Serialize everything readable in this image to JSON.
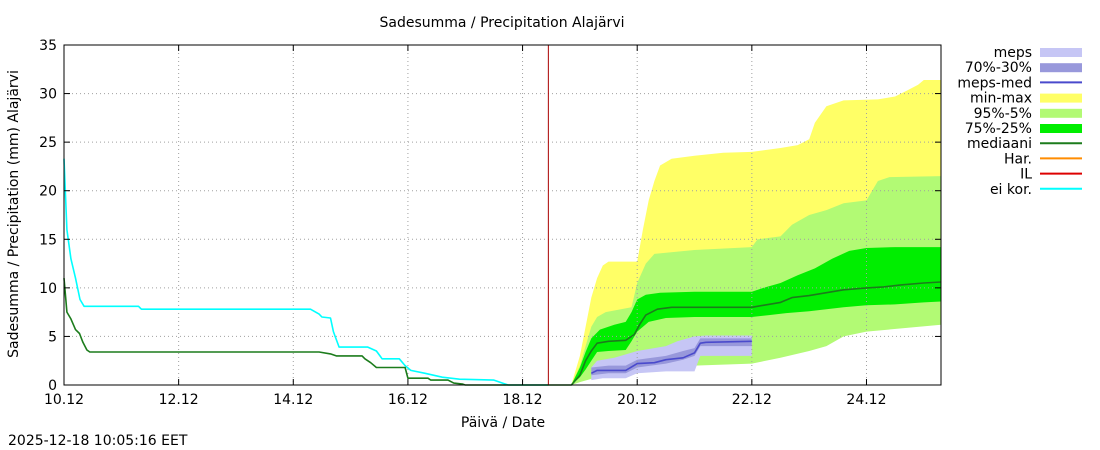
{
  "chart_data": {
    "type": "area",
    "title": "Sadesumma / Precipitation  Alajärvi",
    "xlabel": "Päivä / Date",
    "ylabel": "Sadesumma / Precipitation (mm)  Alajärvi",
    "timestamp": "2025-12-18 10:05:16 EET",
    "x_unit": "days since 10.12.2025 00:00",
    "xlim": [
      0,
      15.3
    ],
    "ylim": [
      0,
      35
    ],
    "x_ticks": [
      {
        "x": 0,
        "label": "10.12"
      },
      {
        "x": 2,
        "label": "12.12"
      },
      {
        "x": 4,
        "label": "14.12"
      },
      {
        "x": 6,
        "label": "16.12"
      },
      {
        "x": 8,
        "label": "18.12"
      },
      {
        "x": 10,
        "label": "20.12"
      },
      {
        "x": 12,
        "label": "22.12"
      },
      {
        "x": 14,
        "label": "24.12"
      }
    ],
    "y_ticks": [
      0,
      5,
      10,
      15,
      20,
      25,
      30,
      35
    ],
    "grid": true,
    "legend_position": "right",
    "legend": [
      {
        "label": "meps",
        "color": "#c6c6f5",
        "style": "box"
      },
      {
        "label": "70%-30%",
        "color": "#9898db",
        "style": "box"
      },
      {
        "label": "meps-med",
        "color": "#4a4acc",
        "style": "line"
      },
      {
        "label": "min-max",
        "color": "#ffff66",
        "style": "box"
      },
      {
        "label": "95%-5%",
        "color": "#b2fa74",
        "style": "box"
      },
      {
        "label": "75%-25%",
        "color": "#00ee00",
        "style": "box"
      },
      {
        "label": "mediaani",
        "color": "#1c7c1c",
        "style": "line"
      },
      {
        "label": "Har.",
        "color": "#ff8c00",
        "style": "line"
      },
      {
        "label": "IL",
        "color": "#dd0000",
        "style": "line"
      },
      {
        "label": "ei kor.",
        "color": "#00ffff",
        "style": "line"
      }
    ],
    "forecast_start_x": 8.45,
    "series": [
      {
        "name": "ei kor.",
        "type": "line",
        "color": "#00ffff",
        "points": [
          [
            0,
            23.3
          ],
          [
            0.05,
            16
          ],
          [
            0.12,
            13
          ],
          [
            0.2,
            11
          ],
          [
            0.28,
            8.8
          ],
          [
            0.35,
            8.1
          ],
          [
            1.3,
            8.1
          ],
          [
            1.35,
            7.8
          ],
          [
            4.3,
            7.8
          ],
          [
            4.45,
            7.3
          ],
          [
            4.5,
            7.0
          ],
          [
            4.65,
            6.9
          ],
          [
            4.7,
            5.5
          ],
          [
            4.8,
            3.9
          ],
          [
            5.3,
            3.9
          ],
          [
            5.45,
            3.5
          ],
          [
            5.55,
            2.7
          ],
          [
            5.85,
            2.7
          ],
          [
            5.95,
            2.0
          ],
          [
            6.05,
            1.5
          ],
          [
            6.3,
            1.2
          ],
          [
            6.6,
            0.8
          ],
          [
            6.9,
            0.6
          ],
          [
            7.5,
            0.5
          ],
          [
            7.65,
            0.2
          ],
          [
            7.75,
            0
          ],
          [
            8.45,
            0
          ]
        ]
      },
      {
        "name": "mediaani-history",
        "type": "line",
        "color": "#1c7c1c",
        "points": [
          [
            0,
            11
          ],
          [
            0.05,
            7.5
          ],
          [
            0.12,
            6.8
          ],
          [
            0.2,
            5.7
          ],
          [
            0.27,
            5.3
          ],
          [
            0.33,
            4.4
          ],
          [
            0.4,
            3.6
          ],
          [
            0.45,
            3.4
          ],
          [
            4.45,
            3.4
          ],
          [
            4.65,
            3.2
          ],
          [
            4.75,
            3.0
          ],
          [
            5.2,
            3.0
          ],
          [
            5.25,
            2.7
          ],
          [
            5.35,
            2.3
          ],
          [
            5.45,
            1.8
          ],
          [
            5.95,
            1.8
          ],
          [
            6.0,
            0.7
          ],
          [
            6.35,
            0.7
          ],
          [
            6.4,
            0.5
          ],
          [
            6.7,
            0.5
          ],
          [
            6.8,
            0.2
          ],
          [
            6.95,
            0.1
          ],
          [
            7.0,
            0
          ],
          [
            8.45,
            0
          ]
        ]
      },
      {
        "name": "min-max",
        "type": "band",
        "color": "#ffff66",
        "lower": [
          [
            8.85,
            0
          ],
          [
            9.0,
            0.5
          ],
          [
            9.3,
            1
          ],
          [
            9.6,
            1.5
          ],
          [
            10.2,
            2
          ],
          [
            11.0,
            2.5
          ],
          [
            11.8,
            3
          ],
          [
            12.5,
            3.5
          ],
          [
            13.0,
            4
          ],
          [
            13.3,
            4.3
          ],
          [
            13.5,
            5.5
          ],
          [
            14.0,
            6
          ],
          [
            15.3,
            6.3
          ]
        ],
        "upper": [
          [
            8.85,
            0
          ],
          [
            9.0,
            3
          ],
          [
            9.1,
            6
          ],
          [
            9.2,
            9
          ],
          [
            9.3,
            11
          ],
          [
            9.4,
            12.3
          ],
          [
            9.5,
            12.7
          ],
          [
            10.0,
            12.7
          ],
          [
            10.1,
            16
          ],
          [
            10.2,
            19
          ],
          [
            10.3,
            21
          ],
          [
            10.4,
            22.6
          ],
          [
            10.6,
            23.3
          ],
          [
            11.0,
            23.6
          ],
          [
            11.5,
            23.9
          ],
          [
            12.0,
            24.0
          ],
          [
            12.5,
            24.4
          ],
          [
            12.8,
            24.7
          ],
          [
            13.0,
            25.3
          ],
          [
            13.1,
            27
          ],
          [
            13.3,
            28.7
          ],
          [
            13.6,
            29.3
          ],
          [
            14.2,
            29.4
          ],
          [
            14.5,
            29.7
          ],
          [
            14.7,
            30.3
          ],
          [
            14.9,
            30.9
          ],
          [
            15.0,
            31.4
          ],
          [
            15.3,
            31.4
          ]
        ]
      },
      {
        "name": "95%-5%",
        "type": "band",
        "color": "#b2fa74",
        "lower": [
          [
            8.85,
            0
          ],
          [
            9.0,
            0.3
          ],
          [
            9.3,
            0.8
          ],
          [
            9.6,
            1.2
          ],
          [
            10.0,
            1.5
          ],
          [
            10.5,
            1.8
          ],
          [
            11.0,
            2
          ],
          [
            12.0,
            2.2
          ],
          [
            12.5,
            2.8
          ],
          [
            13.0,
            3.5
          ],
          [
            13.3,
            4.0
          ],
          [
            13.6,
            5
          ],
          [
            14.0,
            5.5
          ],
          [
            15.3,
            6.2
          ]
        ],
        "upper": [
          [
            8.85,
            0
          ],
          [
            9.0,
            2
          ],
          [
            9.1,
            4
          ],
          [
            9.2,
            6
          ],
          [
            9.3,
            7
          ],
          [
            9.45,
            7.5
          ],
          [
            9.9,
            8
          ],
          [
            10.0,
            10.5
          ],
          [
            10.15,
            12.5
          ],
          [
            10.3,
            13.5
          ],
          [
            11.0,
            13.9
          ],
          [
            12.0,
            14.2
          ],
          [
            12.1,
            15
          ],
          [
            12.5,
            15.3
          ],
          [
            12.7,
            16.5
          ],
          [
            13.0,
            17.5
          ],
          [
            13.3,
            18.0
          ],
          [
            13.6,
            18.7
          ],
          [
            14.0,
            19.0
          ],
          [
            14.2,
            21
          ],
          [
            14.4,
            21.4
          ],
          [
            15.3,
            21.5
          ]
        ]
      },
      {
        "name": "75%-25%",
        "type": "band",
        "color": "#00ee00",
        "lower": [
          [
            8.85,
            0
          ],
          [
            9.0,
            0.8
          ],
          [
            9.1,
            1.6
          ],
          [
            9.2,
            2.5
          ],
          [
            9.3,
            3.4
          ],
          [
            9.5,
            3.5
          ],
          [
            9.8,
            3.6
          ],
          [
            9.9,
            4.5
          ],
          [
            10.0,
            5.5
          ],
          [
            10.2,
            6.5
          ],
          [
            10.5,
            6.9
          ],
          [
            11.0,
            7.0
          ],
          [
            12.0,
            7.0
          ],
          [
            12.3,
            7.2
          ],
          [
            12.6,
            7.4
          ],
          [
            13.0,
            7.6
          ],
          [
            13.3,
            7.8
          ],
          [
            13.6,
            8.0
          ],
          [
            14.0,
            8.2
          ],
          [
            14.5,
            8.3
          ],
          [
            15.0,
            8.5
          ],
          [
            15.3,
            8.6
          ]
        ],
        "upper": [
          [
            8.85,
            0
          ],
          [
            9.0,
            1.8
          ],
          [
            9.1,
            3.4
          ],
          [
            9.2,
            4.8
          ],
          [
            9.35,
            5.7
          ],
          [
            9.6,
            6.2
          ],
          [
            9.8,
            6.5
          ],
          [
            9.9,
            7.5
          ],
          [
            10.0,
            8.8
          ],
          [
            10.15,
            9.3
          ],
          [
            10.4,
            9.5
          ],
          [
            11.0,
            9.6
          ],
          [
            12.0,
            9.6
          ],
          [
            12.2,
            10.0
          ],
          [
            12.5,
            10.5
          ],
          [
            12.8,
            11.3
          ],
          [
            13.1,
            12.0
          ],
          [
            13.4,
            13.0
          ],
          [
            13.7,
            13.8
          ],
          [
            14.0,
            14.1
          ],
          [
            14.5,
            14.2
          ],
          [
            15.3,
            14.2
          ]
        ]
      },
      {
        "name": "meps",
        "type": "band",
        "color": "#c6c6f5",
        "lower": [
          [
            9.2,
            0.5
          ],
          [
            9.4,
            0.7
          ],
          [
            9.8,
            0.7
          ],
          [
            10.0,
            1.2
          ],
          [
            10.5,
            1.4
          ],
          [
            11.0,
            1.4
          ],
          [
            11.1,
            3.0
          ],
          [
            12.0,
            3.0
          ]
        ],
        "upper": [
          [
            9.2,
            1.8
          ],
          [
            9.3,
            2.5
          ],
          [
            9.6,
            2.8
          ],
          [
            10.0,
            3.5
          ],
          [
            10.5,
            4.0
          ],
          [
            10.7,
            4.5
          ],
          [
            11.0,
            5.0
          ],
          [
            11.2,
            5.1
          ],
          [
            12.0,
            5.1
          ]
        ]
      },
      {
        "name": "70%-30%",
        "type": "band",
        "color": "#9898db",
        "lower": [
          [
            9.2,
            1.0
          ],
          [
            9.5,
            1.2
          ],
          [
            9.8,
            1.2
          ],
          [
            10.0,
            1.8
          ],
          [
            10.5,
            2.2
          ],
          [
            10.8,
            2.6
          ],
          [
            11.0,
            3.0
          ],
          [
            11.1,
            4.0
          ],
          [
            12.0,
            4.0
          ]
        ],
        "upper": [
          [
            9.2,
            1.8
          ],
          [
            9.5,
            2.0
          ],
          [
            9.8,
            2.0
          ],
          [
            10.0,
            2.6
          ],
          [
            10.5,
            3.0
          ],
          [
            10.8,
            3.5
          ],
          [
            11.0,
            3.8
          ],
          [
            11.1,
            4.8
          ],
          [
            12.0,
            4.8
          ]
        ]
      },
      {
        "name": "mediaani",
        "type": "line",
        "color": "#1c7c1c",
        "points": [
          [
            8.45,
            0
          ],
          [
            8.85,
            0
          ],
          [
            9.0,
            1.0
          ],
          [
            9.1,
            2.5
          ],
          [
            9.2,
            3.5
          ],
          [
            9.3,
            4.3
          ],
          [
            9.5,
            4.5
          ],
          [
            9.8,
            4.6
          ],
          [
            9.95,
            5.2
          ],
          [
            10.05,
            6.3
          ],
          [
            10.15,
            7.2
          ],
          [
            10.35,
            7.8
          ],
          [
            10.6,
            8.0
          ],
          [
            11.0,
            8.0
          ],
          [
            12.0,
            8.0
          ],
          [
            12.2,
            8.2
          ],
          [
            12.5,
            8.5
          ],
          [
            12.7,
            9.0
          ],
          [
            13.0,
            9.2
          ],
          [
            13.3,
            9.5
          ],
          [
            13.6,
            9.8
          ],
          [
            14.0,
            10.0
          ],
          [
            14.3,
            10.1
          ],
          [
            14.6,
            10.3
          ],
          [
            15.0,
            10.5
          ],
          [
            15.3,
            10.6
          ]
        ]
      },
      {
        "name": "meps-med",
        "type": "line",
        "color": "#4a4acc",
        "points": [
          [
            9.2,
            1.2
          ],
          [
            9.3,
            1.5
          ],
          [
            9.8,
            1.5
          ],
          [
            10.0,
            2.2
          ],
          [
            10.3,
            2.3
          ],
          [
            10.5,
            2.6
          ],
          [
            10.8,
            2.8
          ],
          [
            11.0,
            3.3
          ],
          [
            11.1,
            4.3
          ],
          [
            11.2,
            4.4
          ],
          [
            12.0,
            4.5
          ]
        ]
      }
    ]
  }
}
